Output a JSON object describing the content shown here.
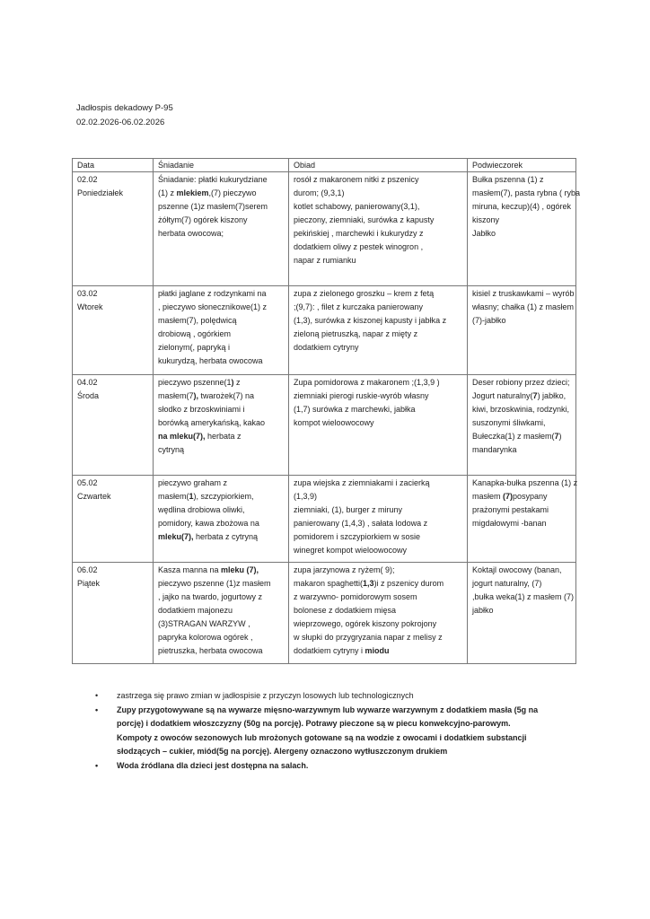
{
  "header": {
    "title": "Jadłospis dekadowy P-95",
    "dates": "02.02.2026-06.02.2026"
  },
  "table": {
    "columns": [
      "Data",
      "Śniadanie",
      "Obiad",
      "Podwieczorek"
    ],
    "rows": [
      {
        "date": [
          "02.02",
          "Poniedziałek"
        ],
        "breakfast": [
          [
            {
              "t": "Śniadanie: płatki kukurydziane"
            }
          ],
          [
            {
              "t": "(1) z  "
            },
            {
              "t": "mlekiem",
              "b": true
            },
            {
              "t": ",(7) pieczywo"
            }
          ],
          [
            {
              "t": "pszenne (1)z masłem(7)serem"
            }
          ],
          [
            {
              "t": "żółtym(7)   ogórek kiszony"
            }
          ],
          [
            {
              "t": "herbata owocowa;"
            }
          ]
        ],
        "lunch": [
          [
            {
              "t": "rosół z makaronem nitki z pszenicy"
            }
          ],
          [
            {
              "t": "durom; (9,3,1)"
            }
          ],
          [
            {
              "t": "kotlet schabowy, panierowany(3,1),"
            }
          ],
          [
            {
              "t": "pieczony, ziemniaki, surówka z kapusty"
            }
          ],
          [
            {
              "t": "pekińskiej , marchewki i kukurydzy z"
            }
          ],
          [
            {
              "t": "dodatkiem oliwy z pestek winogron ,"
            }
          ],
          [
            {
              "t": "napar z rumianku"
            }
          ]
        ],
        "snack": [
          [
            {
              "t": " Bułka pszenna (1)  z"
            }
          ],
          [
            {
              "t": "masłem(7), pasta rybna ( ryba"
            }
          ],
          [
            {
              "t": "miruna, keczup)(4) , ogórek"
            }
          ],
          [
            {
              "t": "kiszony"
            }
          ],
          [
            {
              "t": "Jabłko"
            }
          ]
        ]
      },
      {
        "date": [
          "03.02",
          "Wtorek"
        ],
        "breakfast": [
          [
            {
              "t": "płatki jaglane  z rodzynkami na"
            }
          ],
          [
            {
              "t": ", pieczywo słonecznikowe(1) z"
            }
          ],
          [
            {
              "t": "masłem(7), polędwicą"
            }
          ],
          [
            {
              "t": "drobiową , ogórkiem"
            }
          ],
          [
            {
              "t": "zielonym(, papryką i"
            }
          ],
          [
            {
              "t": "kukurydzą, herbata owocowa"
            }
          ]
        ],
        "lunch": [
          [
            {
              "t": "zupa z zielonego groszku – krem z fetą"
            }
          ],
          [
            {
              "t": ";(9,7): , filet z kurczaka  panierowany"
            }
          ],
          [
            {
              "t": "(1,3), surówka z kiszonej kapusty i jabłka z"
            }
          ],
          [
            {
              "t": "zieloną pietruszką, napar z mięty z"
            }
          ],
          [
            {
              "t": "dodatkiem cytryny"
            }
          ]
        ],
        "snack": [
          [
            {
              "t": "kisiel z truskawkami – wyrób"
            }
          ],
          [
            {
              "t": "własny; chałka (1) z masłem"
            }
          ],
          [
            {
              "t": "(7)-jabłko"
            }
          ]
        ]
      },
      {
        "date": [
          "04.02",
          "Środa"
        ],
        "breakfast": [
          [
            {
              "t": "pieczywo pszenne(1"
            },
            {
              "t": ")",
              "b": true
            },
            {
              "t": "  z"
            }
          ],
          [
            {
              "t": "masłem(7"
            },
            {
              "t": "),",
              "b": true
            },
            {
              "t": " twarożek(7) na"
            }
          ],
          [
            {
              "t": "słodko z brzoskwiniami i"
            }
          ],
          [
            {
              "t": "borówką amerykańską, kakao"
            }
          ],
          [
            {
              "t": "na mleku(7),",
              "b": true
            },
            {
              "t": "  herbata z"
            }
          ],
          [
            {
              "t": "cytryną"
            }
          ]
        ],
        "lunch": [
          [
            {
              "t": "Zupa pomidorowa z makaronem ;(1,3,9 )"
            }
          ],
          [
            {
              "t": "ziemniaki pierogi ruskie-wyrób własny"
            }
          ],
          [
            {
              "t": "(1,7) surówka z marchewki, jabłka"
            }
          ],
          [
            {
              "t": "kompot wieloowocowy"
            }
          ]
        ],
        "snack": [
          [
            {
              "t": " Deser robiony przez dzieci;"
            }
          ],
          [
            {
              "t": "Jogurt naturalny("
            },
            {
              "t": "7",
              "b": true
            },
            {
              "t": ") jabłko,"
            }
          ],
          [
            {
              "t": "kiwi, brzoskwinia, rodzynki,"
            }
          ],
          [
            {
              "t": "suszonymi śliwkami,"
            }
          ],
          [
            {
              "t": "Bułeczka(1) z masłem("
            },
            {
              "t": "7",
              "b": true
            },
            {
              "t": ")"
            }
          ],
          [
            {
              "t": "mandarynka"
            }
          ]
        ]
      },
      {
        "date": [
          "05.02",
          "Czwartek"
        ],
        "breakfast": [
          [
            {
              "t": "pieczywo graham  z"
            }
          ],
          [
            {
              "t": "masłem("
            },
            {
              "t": "1",
              "b": true
            },
            {
              "t": "), szczypiorkiem,"
            }
          ],
          [
            {
              "t": "wędlina drobiowa  oliwki,"
            }
          ],
          [
            {
              "t": "pomidory,  kawa zbożowa na"
            }
          ],
          [
            {
              "t": "mleku(7),",
              "b": true
            },
            {
              "t": "  herbata z cytryną"
            }
          ]
        ],
        "lunch": [
          [
            {
              "t": " zupa wiejska z ziemniakami i zacierką"
            }
          ],
          [
            {
              "t": "(1,3,9)"
            }
          ],
          [
            {
              "t": "ziemniaki, (1), burger z miruny"
            }
          ],
          [
            {
              "t": "panierowany (1,4,3) , sałata lodowa z"
            }
          ],
          [
            {
              "t": "pomidorem i szczypiorkiem w sosie"
            }
          ],
          [
            {
              "t": "winegret kompot wieloowocowy"
            }
          ]
        ],
        "snack": [
          [
            {
              "t": "Kanapka-bułka pszenna (1) z"
            }
          ],
          [
            {
              "t": "masłem "
            },
            {
              "t": "(7)",
              "b": true
            },
            {
              "t": "posypany"
            }
          ],
          [
            {
              "t": "prażonymi pestakami"
            }
          ],
          [
            {
              "t": "migdałowymi  -banan"
            }
          ]
        ]
      },
      {
        "date": [
          "06.02",
          "Piątek"
        ],
        "breakfast": [
          [
            {
              "t": "Kasza manna na  "
            },
            {
              "t": "mleku (7),",
              "b": true
            }
          ],
          [
            {
              "t": "pieczywo pszenne (1)z masłem"
            }
          ],
          [
            {
              "t": ", jajko na twardo, jogurtowy z"
            }
          ],
          [
            {
              "t": "dodatkiem majonezu"
            }
          ],
          [
            {
              "t": "(3)STRAGAN WARZYW ,"
            }
          ],
          [
            {
              "t": "papryka kolorowa ogórek ,"
            }
          ],
          [
            {
              "t": "pietruszka, herbata owocowa"
            }
          ]
        ],
        "lunch": [
          [
            {
              "t": " zupa jarzynowa z ryżem( 9);"
            }
          ],
          [
            {
              "t": "makaron spaghetti("
            },
            {
              "t": "1,3",
              "b": true
            },
            {
              "t": ")i z pszenicy durom"
            }
          ],
          [
            {
              "t": "z warzywno- pomidorowym sosem"
            }
          ],
          [
            {
              "t": "bolonese  z dodatkiem mięsa"
            }
          ],
          [
            {
              "t": "wieprzowego, ogórek kiszony pokrojony"
            }
          ],
          [
            {
              "t": "w słupki do przygryzania  napar z melisy z"
            }
          ],
          [
            {
              "t": "dodatkiem cytryny i "
            },
            {
              "t": "miodu",
              "b": true
            }
          ]
        ],
        "snack": [
          [
            {
              "t": "Koktajl owocowy (banan,"
            }
          ],
          [
            {
              "t": "jogurt naturalny, (7)"
            }
          ],
          [
            {
              "t": ",bułka weka(1) z masłem (7)"
            }
          ],
          [
            {
              "t": "jabłko"
            }
          ]
        ]
      }
    ]
  },
  "notes": [
    [
      " zastrzega się prawo zmian w jadłospisie z przyczyn losowych lub technologicznych"
    ],
    [
      "Zupy przygotowywane są na wywarze mięsno-warzywnym lub wywarze warzywnym z dodatkiem masła (5g na",
      "porcję) i dodatkiem włoszczyzny (50g na porcję). Potrawy pieczone są w piecu konwekcyjno-parowym.",
      "Kompoty z owoców sezonowych lub mrożonych gotowane są na wodzie z owocami i dodatkiem substancji",
      "słodzących – cukier, miód(5g na porcję). Alergeny oznaczono wytłuszczonym drukiem"
    ],
    [
      "Woda źródlana dla dzieci jest dostępna na salach."
    ]
  ],
  "bullet": "•"
}
